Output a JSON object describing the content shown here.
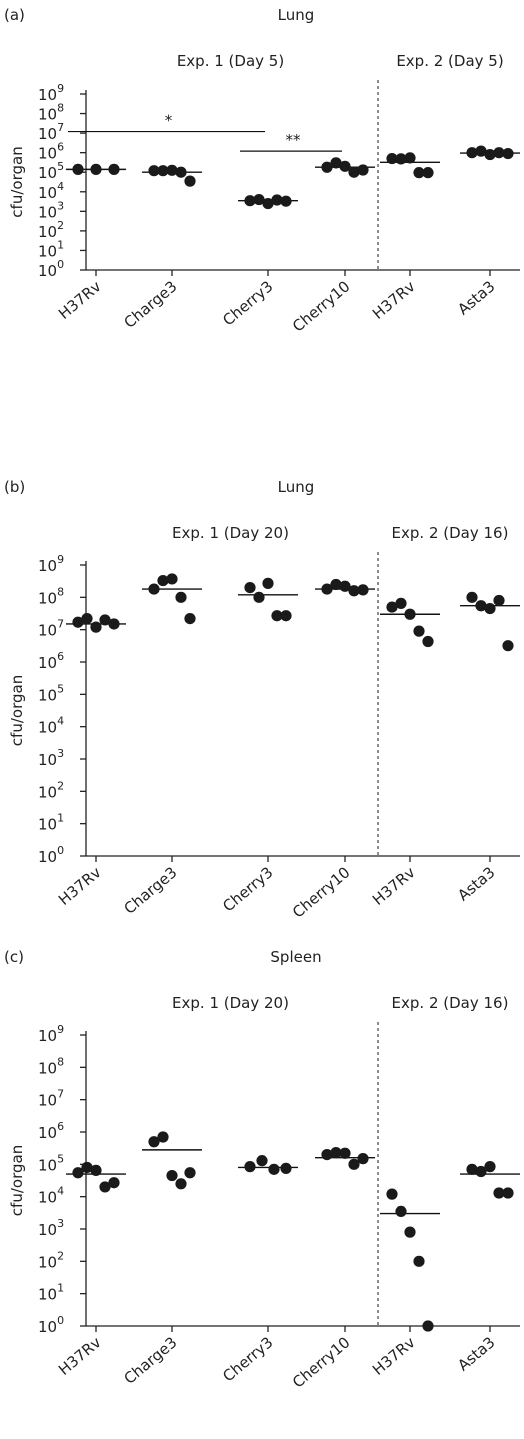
{
  "chart_data": [
    {
      "type": "scatter",
      "panel_label": "(a)",
      "title": "Lung",
      "ylabel": "cfu/organ",
      "yscale": "log",
      "ylim": [
        1,
        1000000000
      ],
      "yticks": [
        {
          "value": 1,
          "base": "10",
          "exp": "0"
        },
        {
          "value": 10,
          "base": "10",
          "exp": "1"
        },
        {
          "value": 100,
          "base": "10",
          "exp": "2"
        },
        {
          "value": 1000,
          "base": "10",
          "exp": "3"
        },
        {
          "value": 10000,
          "base": "10",
          "exp": "4"
        },
        {
          "value": 100000,
          "base": "10",
          "exp": "5"
        },
        {
          "value": 1000000,
          "base": "10",
          "exp": "6"
        },
        {
          "value": 10000000,
          "base": "10",
          "exp": "7"
        },
        {
          "value": 100000000,
          "base": "10",
          "exp": "8"
        },
        {
          "value": 1000000000,
          "base": "10",
          "exp": "9"
        }
      ],
      "categories": [
        "H37Rv",
        "Charge3",
        "Cherry3",
        "Cherry10",
        "H37Rv",
        "Asta3"
      ],
      "groups": [
        {
          "label": "Exp. 1 (Day 5)",
          "categories": [
            0,
            1,
            2,
            3
          ]
        },
        {
          "label": "Exp. 2 (Day 5)",
          "categories": [
            4,
            5
          ]
        }
      ],
      "series": [
        {
          "values": [
            140000,
            140000,
            140000
          ]
        },
        {
          "values": [
            120000,
            120000,
            125000,
            100000,
            35000
          ]
        },
        {
          "values": [
            3500,
            4000,
            2500,
            3800,
            3300
          ]
        },
        {
          "values": [
            180000,
            300000,
            200000,
            100000,
            130000
          ]
        },
        {
          "values": [
            500000,
            480000,
            540000,
            95000,
            95000
          ]
        },
        {
          "values": [
            1000000,
            1200000,
            800000,
            1000000,
            900000
          ]
        }
      ],
      "medians": [
        140000,
        100000,
        3500,
        180000,
        320000,
        950000
      ],
      "significance": [
        {
          "from": 0,
          "to": 2,
          "y": 12000000,
          "label": "*"
        },
        {
          "from": 2,
          "to": 3,
          "y": 1200000,
          "label": "**"
        }
      ]
    },
    {
      "type": "scatter",
      "panel_label": "(b)",
      "title": "Lung",
      "ylabel": "cfu/organ",
      "yscale": "log",
      "ylim": [
        1,
        1000000000
      ],
      "yticks": [
        {
          "value": 1,
          "base": "10",
          "exp": "0"
        },
        {
          "value": 10,
          "base": "10",
          "exp": "1"
        },
        {
          "value": 100,
          "base": "10",
          "exp": "2"
        },
        {
          "value": 1000,
          "base": "10",
          "exp": "3"
        },
        {
          "value": 10000,
          "base": "10",
          "exp": "4"
        },
        {
          "value": 100000,
          "base": "10",
          "exp": "5"
        },
        {
          "value": 1000000,
          "base": "10",
          "exp": "6"
        },
        {
          "value": 10000000,
          "base": "10",
          "exp": "7"
        },
        {
          "value": 100000000,
          "base": "10",
          "exp": "8"
        },
        {
          "value": 1000000000,
          "base": "10",
          "exp": "9"
        }
      ],
      "categories": [
        "H37Rv",
        "Charge3",
        "Cherry3",
        "Cherry10",
        "H37Rv",
        "Asta3"
      ],
      "groups": [
        {
          "label": "Exp. 1 (Day 20)",
          "categories": [
            0,
            1,
            2,
            3
          ]
        },
        {
          "label": "Exp. 2 (Day 16)",
          "categories": [
            4,
            5
          ]
        }
      ],
      "series": [
        {
          "values": [
            17000000,
            22000000,
            12000000,
            20000000,
            15000000
          ]
        },
        {
          "values": [
            180000000,
            330000000,
            370000000,
            100000000,
            22000000
          ]
        },
        {
          "values": [
            200000000,
            100000000,
            270000000,
            27000000,
            27000000
          ]
        },
        {
          "values": [
            180000000,
            250000000,
            220000000,
            160000000,
            170000000
          ]
        },
        {
          "values": [
            50000000,
            65000000,
            30000000,
            9000000,
            4300000
          ]
        },
        {
          "values": [
            100000000,
            55000000,
            45000000,
            80000000,
            3200000
          ]
        }
      ],
      "medians": [
        15000000,
        180000000,
        120000000,
        180000000,
        30000000,
        55000000
      ],
      "significance": []
    },
    {
      "type": "scatter",
      "panel_label": "(c)",
      "title": "Spleen",
      "ylabel": "cfu/organ",
      "yscale": "log",
      "ylim": [
        1,
        1000000000
      ],
      "yticks": [
        {
          "value": 1,
          "base": "10",
          "exp": "0"
        },
        {
          "value": 10,
          "base": "10",
          "exp": "1"
        },
        {
          "value": 100,
          "base": "10",
          "exp": "2"
        },
        {
          "value": 1000,
          "base": "10",
          "exp": "3"
        },
        {
          "value": 10000,
          "base": "10",
          "exp": "4"
        },
        {
          "value": 100000,
          "base": "10",
          "exp": "5"
        },
        {
          "value": 1000000,
          "base": "10",
          "exp": "6"
        },
        {
          "value": 10000000,
          "base": "10",
          "exp": "7"
        },
        {
          "value": 100000000,
          "base": "10",
          "exp": "8"
        },
        {
          "value": 1000000000,
          "base": "10",
          "exp": "9"
        }
      ],
      "categories": [
        "H37Rv",
        "Charge3",
        "Cherry3",
        "Cherry10",
        "H37Rv",
        "Asta3"
      ],
      "groups": [
        {
          "label": "Exp. 1 (Day 20)",
          "categories": [
            0,
            1,
            2,
            3
          ]
        },
        {
          "label": "Exp. 2 (Day 16)",
          "categories": [
            4,
            5
          ]
        }
      ],
      "series": [
        {
          "values": [
            55000,
            80000,
            65000,
            20000,
            27000
          ]
        },
        {
          "values": [
            500000,
            700000,
            45000,
            25000,
            55000
          ]
        },
        {
          "values": [
            85000,
            130000,
            70000,
            75000
          ]
        },
        {
          "values": [
            200000,
            230000,
            220000,
            100000,
            150000
          ]
        },
        {
          "values": [
            12000,
            3500,
            800,
            100,
            1
          ]
        },
        {
          "values": [
            70000,
            60000,
            85000,
            13000,
            13000
          ]
        }
      ],
      "medians": [
        50000,
        280000,
        80000,
        160000,
        3000,
        50000
      ],
      "significance": []
    }
  ]
}
